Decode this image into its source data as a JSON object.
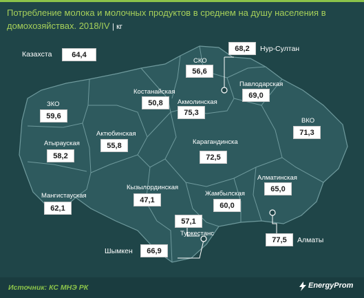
{
  "title": {
    "main": "Потребление молока и молочных продуктов в среднем на душу населения в домохозяйствах. 2018/IV",
    "unit": "| кг"
  },
  "country": {
    "name": "Казахста",
    "value": "64,4"
  },
  "regions": [
    {
      "key": "nur_sultan",
      "name": "Нур-Султан",
      "value": "68,2"
    },
    {
      "key": "sko",
      "name": "СКО",
      "value": "56,6"
    },
    {
      "key": "pavlodar",
      "name": "Павлодарская",
      "value": "69,0"
    },
    {
      "key": "kostanay",
      "name": "Костанайская",
      "value": "50,8"
    },
    {
      "key": "akmola",
      "name": "Акмолинская",
      "value": "75,3"
    },
    {
      "key": "zko",
      "name": "ЗКО",
      "value": "59,6"
    },
    {
      "key": "vko",
      "name": "ВКО",
      "value": "71,3"
    },
    {
      "key": "aktobe",
      "name": "Актюбинская",
      "value": "55,8"
    },
    {
      "key": "atyrau",
      "name": "Атырауская",
      "value": "58,2"
    },
    {
      "key": "karaganda",
      "name": "Карагандинска",
      "value": "72,5"
    },
    {
      "key": "almaty_obl",
      "name": "Алматинская",
      "value": "65,0"
    },
    {
      "key": "mangistau",
      "name": "Мангистауская",
      "value": "62,1"
    },
    {
      "key": "kyzylorda",
      "name": "Кызылординская",
      "value": "47,1"
    },
    {
      "key": "zhambyl",
      "name": "Жамбылская",
      "value": "60,0"
    },
    {
      "key": "turkestan",
      "name": "Туркестанс",
      "value": "57,1"
    },
    {
      "key": "almaty",
      "name": "Алматы",
      "value": "77,5"
    },
    {
      "key": "shymkent",
      "name": "Шымкен",
      "value": "66,9"
    }
  ],
  "footer": {
    "source": "Источник: КС МНЭ РК",
    "logo": "EnergyProm"
  },
  "colors": {
    "background": "#1f4548",
    "map_fill": "#2e5a5e",
    "border_lines": "#5f8a8d",
    "title": "#a6d05a",
    "source": "#8bc34a"
  }
}
